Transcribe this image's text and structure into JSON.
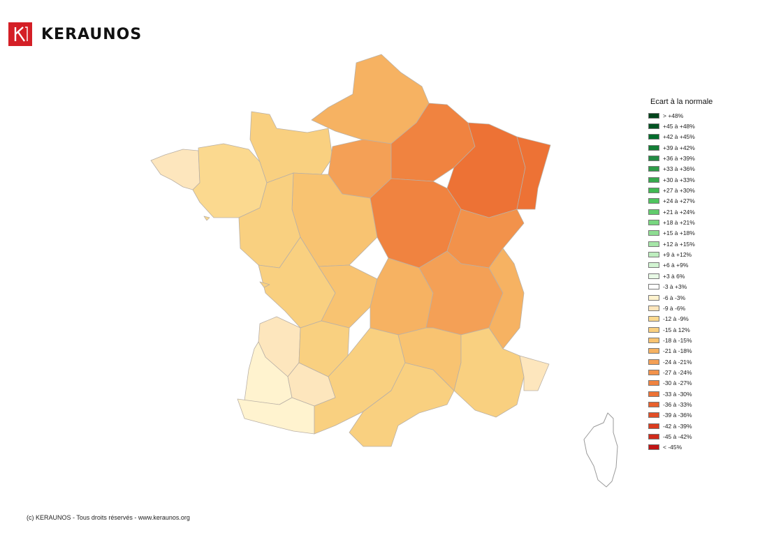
{
  "header": {
    "brand": "KERAUNOS",
    "brand_color": "#d41f26"
  },
  "legend": {
    "title": "Ecart à la normale",
    "items": [
      {
        "label": "> +48%",
        "color": "#00441b"
      },
      {
        "label": "+45 à +48%",
        "color": "#005322"
      },
      {
        "label": "+42 à +45%",
        "color": "#006d2c"
      },
      {
        "label": "+39 à +42%",
        "color": "#137e35"
      },
      {
        "label": "+36 à +39%",
        "color": "#238b45"
      },
      {
        "label": "+33 à +36%",
        "color": "#2f9c49"
      },
      {
        "label": "+30 à +33%",
        "color": "#37a94d"
      },
      {
        "label": "+27 à +30%",
        "color": "#41b953"
      },
      {
        "label": "+24 à +27%",
        "color": "#4fc55f"
      },
      {
        "label": "+21 à +24%",
        "color": "#62cc6d"
      },
      {
        "label": "+18 à +21%",
        "color": "#78d680"
      },
      {
        "label": "+15 à +18%",
        "color": "#8edd92"
      },
      {
        "label": "+12 à +15%",
        "color": "#a6e6a8"
      },
      {
        "label": "+9 à +12%",
        "color": "#bdedbe"
      },
      {
        "label": "+6 à +9%",
        "color": "#d2f4d2"
      },
      {
        "label": "+3 à 6%",
        "color": "#e8f9e6"
      },
      {
        "label": "-3 à +3%",
        "color": "#ffffff"
      },
      {
        "label": "-6 à -3%",
        "color": "#fff3cf"
      },
      {
        "label": "-9 à -6%",
        "color": "#fde6bd"
      },
      {
        "label": "-12 à -9%",
        "color": "#fbd98f"
      },
      {
        "label": "-15 à 12%",
        "color": "#f9d080"
      },
      {
        "label": "-18 à -15%",
        "color": "#f8c371"
      },
      {
        "label": "-21 à -18%",
        "color": "#f6b262"
      },
      {
        "label": "-24 à -21%",
        "color": "#f4a056"
      },
      {
        "label": "-27 à -24%",
        "color": "#f2924b"
      },
      {
        "label": "-30 à -27%",
        "color": "#f08340"
      },
      {
        "label": "-33 à -30%",
        "color": "#ed7235"
      },
      {
        "label": "-36 à -33%",
        "color": "#e8602c"
      },
      {
        "label": "-39 à -36%",
        "color": "#e24e26"
      },
      {
        "label": "-42 à -39%",
        "color": "#da3c1f"
      },
      {
        "label": "-45 à -42%",
        "color": "#d02a1a"
      },
      {
        "label": "< -45%",
        "color": "#c01414"
      }
    ]
  },
  "footer": {
    "copyright": "(c) KERAUNOS - Tous droits réservés - www.keraunos.org"
  }
}
